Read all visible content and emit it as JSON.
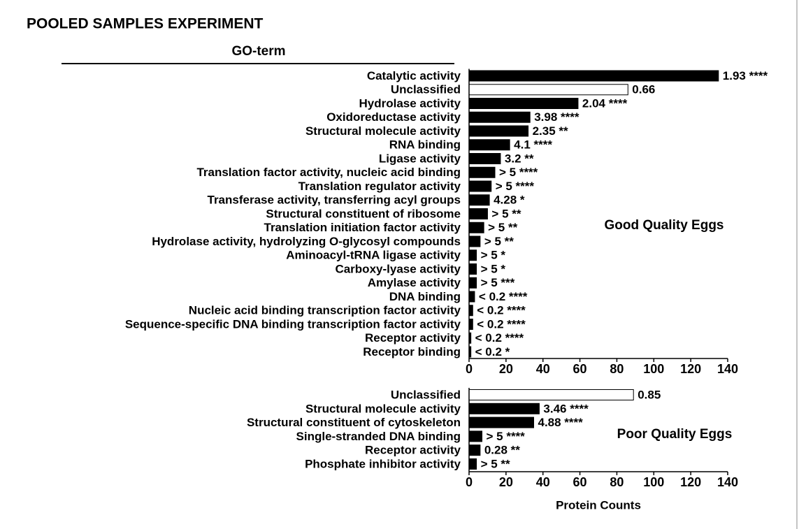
{
  "title": "POOLED SAMPLES EXPERIMENT",
  "column_header": "GO-term",
  "chart_data": [
    {
      "type": "bar",
      "orientation": "horizontal",
      "annotation": "Good Quality Eggs",
      "categories": [
        "Catalytic activity",
        "Unclassified",
        "Hydrolase activity",
        "Oxidoreductase activity",
        "Structural molecule activity",
        "RNA binding",
        "Ligase activity",
        "Translation factor activity, nucleic acid binding",
        "Translation regulator activity",
        "Transferase activity, transferring acyl groups",
        "Structural constituent of ribosome",
        "Translation initiation factor activity",
        "Hydrolase activity, hydrolyzing O-glycosyl compounds",
        "Aminoacyl-tRNA ligase activity",
        "Carboxy-lyase activity",
        "Amylase activity",
        "DNA binding",
        "Nucleic acid binding transcription factor activity",
        "Sequence-specific DNA binding transcription factor activity",
        "Receptor activity",
        "Receptor binding"
      ],
      "values": [
        135,
        86,
        59,
        33,
        32,
        22,
        17,
        14,
        12,
        11,
        10,
        8,
        6,
        4,
        4,
        4,
        3,
        2,
        2,
        1,
        1
      ],
      "colors": [
        "#000000",
        "#ffffff",
        "#000000",
        "#000000",
        "#000000",
        "#000000",
        "#000000",
        "#000000",
        "#000000",
        "#000000",
        "#000000",
        "#000000",
        "#000000",
        "#000000",
        "#000000",
        "#000000",
        "#000000",
        "#000000",
        "#000000",
        "#000000",
        "#000000"
      ],
      "bar_labels": [
        "1.93 ****",
        "0.66",
        "2.04 ****",
        "3.98 ****",
        "2.35 **",
        "4.1 ****",
        "3.2 **",
        "> 5 ****",
        "> 5 ****",
        "4.28 *",
        "> 5 **",
        "> 5 **",
        "> 5 **",
        "> 5 *",
        "> 5 *",
        "> 5 ***",
        "< 0.2 ****",
        "< 0.2 ****",
        "< 0.2 ****",
        "< 0.2 ****",
        "< 0.2 *"
      ],
      "xlim": [
        0,
        140
      ],
      "xticks": [
        0,
        20,
        40,
        60,
        80,
        100,
        120,
        140
      ]
    },
    {
      "type": "bar",
      "orientation": "horizontal",
      "annotation": "Poor Quality Eggs",
      "categories": [
        "Unclassified",
        "Structural molecule activity",
        "Structural constituent of cytoskeleton",
        "Single-stranded DNA binding",
        "Receptor activity",
        "Phosphate inhibitor activity"
      ],
      "values": [
        89,
        38,
        35,
        7,
        6,
        4
      ],
      "colors": [
        "#ffffff",
        "#000000",
        "#000000",
        "#000000",
        "#000000",
        "#000000"
      ],
      "bar_labels": [
        "0.85",
        "3.46 ****",
        "4.88 ****",
        "> 5 ****",
        "0.28 **",
        "> 5 **"
      ],
      "xlim": [
        0,
        140
      ],
      "xticks": [
        0,
        20,
        40,
        60,
        80,
        100,
        120,
        140
      ],
      "xlabel": "Protein Counts"
    }
  ]
}
